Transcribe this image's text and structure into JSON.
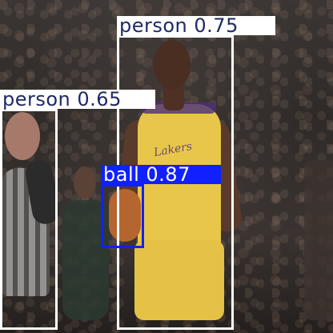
{
  "detections": [
    {
      "class": "person",
      "score": "0.75",
      "label": "person 0.75"
    },
    {
      "class": "person",
      "score": "0.65",
      "label": "person 0.65"
    },
    {
      "class": "ball",
      "score": "0.87",
      "label": "ball 0.87"
    }
  ],
  "jersey_text": "Lakers",
  "colors": {
    "person_box": "#ffffff",
    "person_label_text": "#1f2a66",
    "ball_box": "#1020ff",
    "ball_label_text": "#ffffff"
  }
}
